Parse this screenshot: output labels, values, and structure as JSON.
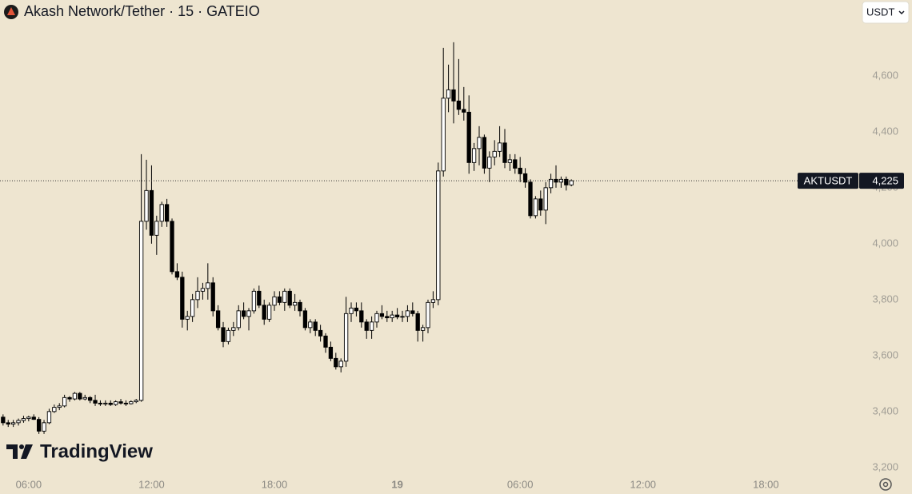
{
  "header": {
    "title": "Akash Network/Tether · 15 · GATEIO",
    "currency": "USDT",
    "brand": "TradingView"
  },
  "chart_data": {
    "type": "candlestick",
    "x": [
      4.75,
      5,
      5.25,
      5.5,
      5.75,
      6,
      6.25,
      6.5,
      6.75,
      7,
      7.25,
      7.5,
      7.75,
      8,
      8.25,
      8.5,
      8.75,
      9,
      9.25,
      9.5,
      9.75,
      10,
      10.25,
      10.5,
      10.75,
      11,
      11.25,
      11.5,
      11.75,
      12,
      12.25,
      12.5,
      12.75,
      13,
      13.25,
      13.5,
      13.75,
      14,
      14.25,
      14.5,
      14.75,
      15,
      15.25,
      15.5,
      15.75,
      16,
      16.25,
      16.5,
      16.75,
      17,
      17.25,
      17.5,
      17.75,
      18,
      18.25,
      18.5,
      18.75,
      19,
      19.25,
      19.5,
      19.75,
      20,
      20.25,
      20.5,
      20.75,
      21,
      21.25,
      21.5,
      21.75,
      22,
      22.25,
      22.5,
      22.75,
      23,
      23.25,
      23.5,
      23.75,
      24,
      24.25,
      24.5,
      24.75,
      25,
      25.25,
      25.5,
      25.75,
      26,
      26.25,
      26.5,
      26.75,
      27,
      27.25,
      27.5,
      27.75,
      28,
      28.25,
      28.5,
      28.75,
      29,
      29.25,
      29.5,
      29.75,
      30,
      30.25,
      30.5,
      30.75,
      31,
      31.25,
      31.5,
      31.75,
      32,
      32.25,
      32.5
    ],
    "open": [
      3380,
      3360,
      3355,
      3360,
      3368,
      3375,
      3380,
      3372,
      3330,
      3360,
      3400,
      3415,
      3420,
      3450,
      3445,
      3465,
      3445,
      3450,
      3440,
      3430,
      3428,
      3430,
      3425,
      3435,
      3430,
      3428,
      3435,
      3440,
      4080,
      4190,
      4030,
      4080,
      4140,
      4080,
      3900,
      3880,
      3730,
      3740,
      3800,
      3830,
      3840,
      3860,
      3760,
      3700,
      3650,
      3690,
      3700,
      3760,
      3740,
      3760,
      3830,
      3780,
      3730,
      3780,
      3810,
      3790,
      3830,
      3780,
      3790,
      3760,
      3700,
      3720,
      3690,
      3670,
      3630,
      3590,
      3560,
      3580,
      3750,
      3770,
      3760,
      3720,
      3690,
      3720,
      3750,
      3740,
      3735,
      3745,
      3738,
      3740,
      3760,
      3750,
      3690,
      3700,
      3790,
      3800,
      4260,
      4520,
      4550,
      4510,
      4480,
      4470,
      4290,
      4340,
      4380,
      4270,
      4310,
      4330,
      4360,
      4290,
      4300,
      4270,
      4250,
      4220,
      4100,
      4160,
      4120,
      4200,
      4230,
      4220,
      4230,
      4210
    ],
    "high": [
      3390,
      3370,
      3370,
      3375,
      3385,
      3385,
      3390,
      3380,
      3370,
      3410,
      3425,
      3430,
      3460,
      3455,
      3470,
      3470,
      3460,
      3455,
      3460,
      3440,
      3440,
      3440,
      3440,
      3445,
      3440,
      3440,
      3445,
      4320,
      4300,
      4280,
      4100,
      4150,
      4160,
      4090,
      3930,
      3900,
      3760,
      3820,
      3880,
      3860,
      3930,
      3880,
      3780,
      3720,
      3700,
      3720,
      3780,
      3790,
      3770,
      3840,
      3850,
      3800,
      3790,
      3830,
      3830,
      3840,
      3840,
      3820,
      3800,
      3770,
      3730,
      3730,
      3710,
      3680,
      3650,
      3610,
      3590,
      3810,
      3790,
      3790,
      3790,
      3730,
      3740,
      3760,
      3780,
      3760,
      3760,
      3770,
      3760,
      3780,
      3790,
      3760,
      3710,
      3800,
      3830,
      4290,
      4700,
      4640,
      4720,
      4660,
      4560,
      4530,
      4360,
      4420,
      4390,
      4330,
      4370,
      4420,
      4410,
      4320,
      4320,
      4310,
      4270,
      4230,
      4170,
      4190,
      4220,
      4250,
      4280,
      4240,
      4240,
      4230
    ],
    "low": [
      3350,
      3345,
      3345,
      3350,
      3360,
      3365,
      3370,
      3320,
      3320,
      3355,
      3395,
      3405,
      3415,
      3435,
      3440,
      3440,
      3440,
      3430,
      3420,
      3420,
      3420,
      3420,
      3420,
      3425,
      3420,
      3425,
      3430,
      3435,
      4050,
      4000,
      3960,
      4060,
      4060,
      3890,
      3870,
      3700,
      3690,
      3720,
      3770,
      3800,
      3800,
      3740,
      3690,
      3630,
      3640,
      3670,
      3690,
      3730,
      3690,
      3750,
      3770,
      3710,
      3720,
      3760,
      3780,
      3760,
      3770,
      3760,
      3740,
      3690,
      3680,
      3670,
      3650,
      3610,
      3580,
      3550,
      3540,
      3560,
      3720,
      3740,
      3700,
      3660,
      3660,
      3700,
      3730,
      3720,
      3720,
      3730,
      3720,
      3720,
      3740,
      3650,
      3650,
      3680,
      3770,
      3780,
      4240,
      4470,
      4430,
      4460,
      4440,
      4250,
      4260,
      4280,
      4250,
      4220,
      4280,
      4310,
      4270,
      4260,
      4250,
      4220,
      4200,
      4090,
      4090,
      4100,
      4070,
      4180,
      4200,
      4200,
      4190,
      4205
    ],
    "close": [
      3360,
      3355,
      3360,
      3368,
      3375,
      3380,
      3372,
      3330,
      3360,
      3400,
      3415,
      3420,
      3450,
      3445,
      3465,
      3445,
      3450,
      3440,
      3430,
      3428,
      3430,
      3425,
      3435,
      3430,
      3428,
      3435,
      3440,
      4080,
      4190,
      4030,
      4080,
      4140,
      4080,
      3900,
      3880,
      3730,
      3740,
      3800,
      3830,
      3840,
      3860,
      3760,
      3700,
      3650,
      3690,
      3700,
      3760,
      3740,
      3760,
      3830,
      3780,
      3730,
      3780,
      3810,
      3790,
      3830,
      3780,
      3790,
      3760,
      3700,
      3720,
      3690,
      3670,
      3630,
      3590,
      3560,
      3580,
      3750,
      3770,
      3760,
      3720,
      3690,
      3720,
      3750,
      3740,
      3735,
      3745,
      3738,
      3740,
      3760,
      3750,
      3690,
      3700,
      3790,
      3800,
      4260,
      4520,
      4550,
      4510,
      4480,
      4470,
      4290,
      4340,
      4380,
      4270,
      4310,
      4330,
      4360,
      4290,
      4300,
      4270,
      4250,
      4220,
      4100,
      4160,
      4120,
      4200,
      4230,
      4220,
      4230,
      4210,
      4225
    ],
    "xlim": [
      4.6,
      46.4
    ],
    "xticks": [
      {
        "value": 6,
        "label": "06:00"
      },
      {
        "value": 12,
        "label": "12:00"
      },
      {
        "value": 18,
        "label": "18:00"
      },
      {
        "value": 24,
        "label": "19"
      },
      {
        "value": 30,
        "label": "06:00"
      },
      {
        "value": 36,
        "label": "12:00"
      },
      {
        "value": 42,
        "label": "18:00"
      }
    ],
    "ylim": [
      3171,
      4871
    ],
    "yticks": [
      {
        "value": 3200,
        "label": "3,200"
      },
      {
        "value": 3400,
        "label": "3,400"
      },
      {
        "value": 3600,
        "label": "3,600"
      },
      {
        "value": 3800,
        "label": "3,800"
      },
      {
        "value": 4000,
        "label": "4,000"
      },
      {
        "value": 4200,
        "label": "4,200"
      },
      {
        "value": 4400,
        "label": "4,400"
      },
      {
        "value": 4600,
        "label": "4,600"
      }
    ],
    "last_price": {
      "symbol": "AKTUSDT",
      "value": 4225,
      "label": "4,225"
    },
    "colors": {
      "up": "#ffffff",
      "down": "#000000",
      "background": "#eee5d0"
    }
  }
}
